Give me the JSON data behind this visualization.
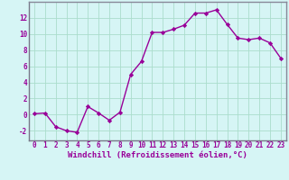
{
  "x": [
    0,
    1,
    2,
    3,
    4,
    5,
    6,
    7,
    8,
    9,
    10,
    11,
    12,
    13,
    14,
    15,
    16,
    17,
    18,
    19,
    20,
    21,
    22,
    23
  ],
  "y": [
    0.1,
    0.2,
    -1.5,
    -2.0,
    -2.2,
    1.0,
    0.2,
    -0.7,
    0.3,
    5.0,
    6.6,
    10.2,
    10.2,
    10.6,
    11.1,
    12.6,
    12.6,
    13.0,
    11.2,
    9.5,
    9.3,
    9.5,
    8.9,
    7.0
  ],
  "line_color": "#990099",
  "marker": "D",
  "marker_size": 2.2,
  "bg_color": "#d6f5f5",
  "grid_color": "#aaddcc",
  "spine_color": "#888899",
  "xlabel": "Windchill (Refroidissement éolien,°C)",
  "ylim": [
    -3.2,
    14.0
  ],
  "xlim": [
    -0.5,
    23.5
  ],
  "yticks": [
    -2,
    0,
    2,
    4,
    6,
    8,
    10,
    12
  ],
  "xticks": [
    0,
    1,
    2,
    3,
    4,
    5,
    6,
    7,
    8,
    9,
    10,
    11,
    12,
    13,
    14,
    15,
    16,
    17,
    18,
    19,
    20,
    21,
    22,
    23
  ],
  "tick_fontsize": 5.5,
  "xlabel_fontsize": 6.5,
  "line_width": 1.0
}
